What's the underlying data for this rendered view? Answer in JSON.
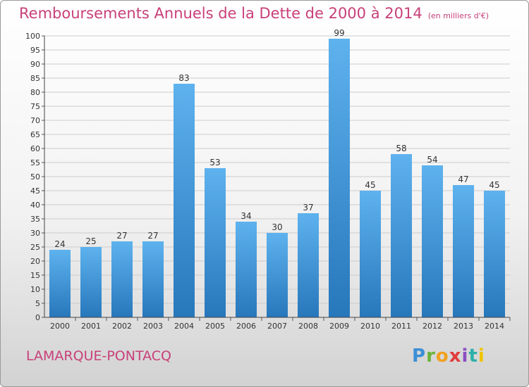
{
  "colors": {
    "accent": "#c8407a",
    "bar_light": "#5eb2ee",
    "bar_dark": "#2777bb",
    "grid": "#cccccc"
  },
  "footer": {
    "town": "LAMARQUE-PONTACQ",
    "logo": "Proxiti"
  },
  "chart_data": {
    "type": "bar",
    "title": "Remboursements Annuels de la Dette de 2000 à 2014",
    "subtitle": "(en milliers d'€)",
    "xlabel": "",
    "ylabel": "",
    "categories": [
      "2000",
      "2001",
      "2002",
      "2003",
      "2004",
      "2005",
      "2006",
      "2007",
      "2008",
      "2009",
      "2010",
      "2011",
      "2012",
      "2013",
      "2014"
    ],
    "values": [
      24,
      25,
      27,
      27,
      83,
      53,
      34,
      30,
      37,
      99,
      45,
      58,
      54,
      47,
      45
    ],
    "ylim": [
      0,
      100
    ],
    "yticks": [
      0,
      5,
      10,
      15,
      20,
      25,
      30,
      35,
      40,
      45,
      50,
      55,
      60,
      65,
      70,
      75,
      80,
      85,
      90,
      95,
      100
    ],
    "grid": true,
    "legend": "none"
  }
}
